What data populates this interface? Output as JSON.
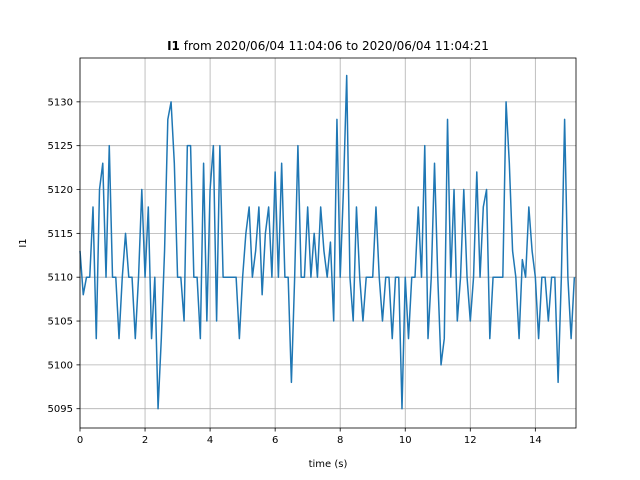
{
  "chart_data": {
    "type": "line",
    "title_bold": "I1",
    "title": "from 2020/06/04 11:04:06 to 2020/06/04 11:04:21",
    "xlabel": "time (s)",
    "ylabel": "I1",
    "xlim": [
      0,
      15.25
    ],
    "ylim": [
      5092.8,
      5135.0
    ],
    "xticks": [
      0,
      2,
      4,
      6,
      8,
      10,
      12,
      14
    ],
    "yticks": [
      5095,
      5100,
      5105,
      5110,
      5115,
      5120,
      5125,
      5130
    ],
    "grid": true,
    "x": [
      0,
      0.1,
      0.2,
      0.3,
      0.4,
      0.5,
      0.6,
      0.7,
      0.8,
      0.9,
      1,
      1.1,
      1.2,
      1.3,
      1.4,
      1.5,
      1.6,
      1.7,
      1.8,
      1.9,
      2,
      2.1,
      2.2,
      2.3,
      2.4,
      2.5,
      2.6,
      2.7,
      2.8,
      2.9,
      3,
      3.1,
      3.2,
      3.3,
      3.4,
      3.5,
      3.6,
      3.7,
      3.8,
      3.9,
      4,
      4.1,
      4.2,
      4.3,
      4.4,
      4.5,
      4.6,
      4.7,
      4.8,
      4.9,
      5,
      5.1,
      5.2,
      5.3,
      5.4,
      5.5,
      5.6,
      5.7,
      5.8,
      5.9,
      6,
      6.1,
      6.2,
      6.3,
      6.4,
      6.5,
      6.6,
      6.7,
      6.8,
      6.9,
      7,
      7.1,
      7.2,
      7.3,
      7.4,
      7.5,
      7.6,
      7.7,
      7.8,
      7.9,
      8,
      8.1,
      8.2,
      8.3,
      8.4,
      8.5,
      8.6,
      8.7,
      8.8,
      8.9,
      9,
      9.1,
      9.2,
      9.3,
      9.4,
      9.5,
      9.6,
      9.7,
      9.8,
      9.9,
      10,
      10.1,
      10.2,
      10.3,
      10.4,
      10.5,
      10.6,
      10.7,
      10.8,
      10.9,
      11,
      11.1,
      11.2,
      11.3,
      11.4,
      11.5,
      11.6,
      11.7,
      11.8,
      11.9,
      12,
      12.1,
      12.2,
      12.3,
      12.4,
      12.5,
      12.6,
      12.7,
      12.8,
      12.9,
      13,
      13.1,
      13.2,
      13.3,
      13.4,
      13.5,
      13.6,
      13.7,
      13.8,
      13.9,
      14,
      14.1,
      14.2,
      14.3,
      14.4,
      14.5,
      14.6,
      14.7,
      14.8,
      14.9,
      15,
      15.1,
      15.2
    ],
    "series": [
      {
        "name": "I1",
        "color": "#1f77b4",
        "values": [
          5113,
          5108,
          5110,
          5110,
          5118,
          5103,
          5120,
          5123,
          5110,
          5125,
          5110,
          5110,
          5103,
          5110,
          5115,
          5110,
          5110,
          5103,
          5110,
          5120,
          5110,
          5118,
          5103,
          5110,
          5095,
          5103,
          5113,
          5128,
          5130,
          5123,
          5110,
          5110,
          5105,
          5125,
          5125,
          5110,
          5110,
          5103,
          5123,
          5105,
          5120,
          5125,
          5105,
          5125,
          5110,
          5110,
          5110,
          5110,
          5110,
          5103,
          5110,
          5115,
          5118,
          5110,
          5113,
          5118,
          5108,
          5115,
          5118,
          5110,
          5122,
          5110,
          5123,
          5110,
          5110,
          5098,
          5110,
          5125,
          5110,
          5110,
          5118,
          5110,
          5115,
          5110,
          5118,
          5113,
          5110,
          5114,
          5105,
          5128,
          5110,
          5120,
          5133,
          5110,
          5105,
          5118,
          5110,
          5105,
          5110,
          5110,
          5110,
          5118,
          5110,
          5105,
          5110,
          5110,
          5103,
          5110,
          5110,
          5095,
          5110,
          5103,
          5110,
          5110,
          5118,
          5110,
          5125,
          5103,
          5110,
          5123,
          5110,
          5100,
          5103,
          5128,
          5110,
          5120,
          5105,
          5110,
          5120,
          5110,
          5105,
          5110,
          5122,
          5110,
          5118,
          5120,
          5103,
          5110,
          5110,
          5110,
          5110,
          5130,
          5123,
          5113,
          5110,
          5103,
          5112,
          5110,
          5118,
          5113,
          5110,
          5103,
          5110,
          5110,
          5105,
          5110,
          5110,
          5098,
          5110,
          5128,
          5110,
          5103,
          5110
        ]
      }
    ]
  }
}
